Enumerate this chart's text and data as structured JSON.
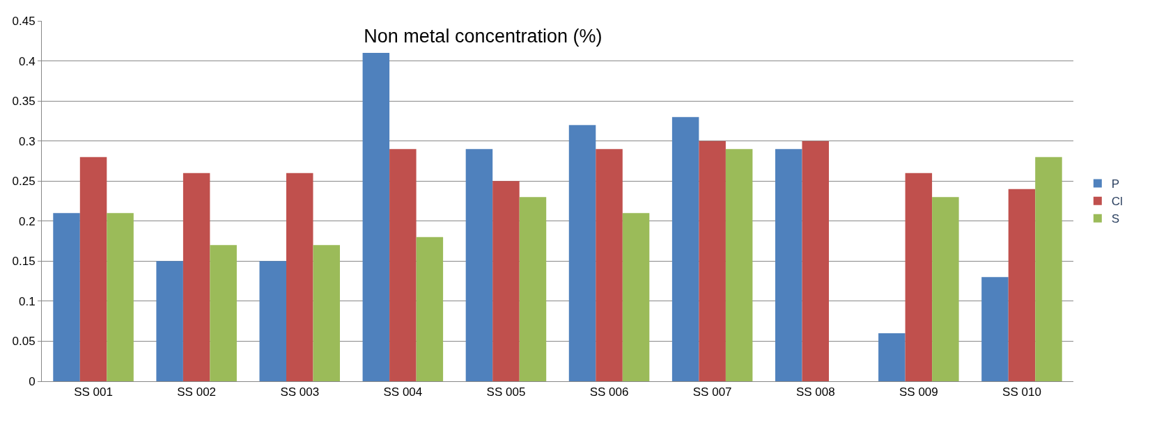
{
  "chart_data": {
    "type": "bar",
    "title": "Non metal concentration (%)",
    "categories": [
      "SS 001",
      "SS 002",
      "SS 003",
      "SS 004",
      "SS 005",
      "SS 006",
      "SS 007",
      "SS 008",
      "SS 009",
      "SS 010"
    ],
    "series": [
      {
        "name": "P",
        "color": "#4f81bd",
        "values": [
          0.21,
          0.15,
          0.15,
          0.41,
          0.29,
          0.32,
          0.33,
          0.29,
          0.06,
          0.13
        ]
      },
      {
        "name": "Cl",
        "color": "#c0504d",
        "values": [
          0.28,
          0.26,
          0.26,
          0.29,
          0.25,
          0.29,
          0.3,
          0.3,
          0.26,
          0.24
        ]
      },
      {
        "name": "S",
        "color": "#9bbb59",
        "values": [
          0.21,
          0.17,
          0.17,
          0.18,
          0.23,
          0.21,
          0.29,
          null,
          0.23,
          0.28
        ]
      }
    ],
    "ylim": [
      0,
      0.45
    ],
    "yticks": [
      0,
      0.05,
      0.1,
      0.15,
      0.2,
      0.25,
      0.3,
      0.35,
      0.4,
      0.45
    ],
    "grid": "y",
    "legend": "right"
  }
}
